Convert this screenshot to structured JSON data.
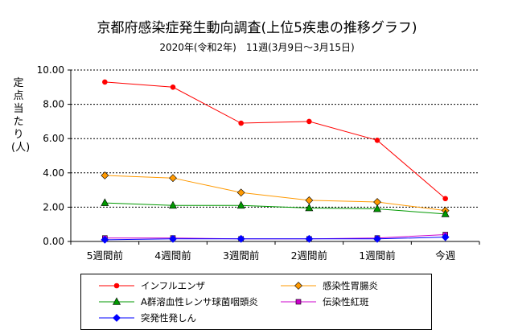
{
  "chart_data": {
    "type": "line",
    "title": "京都府感染症発生動向調査(上位5疾患の推移グラフ)",
    "subtitle": "2020年(令和2年)　11週(3月9日～3月15日)",
    "xlabel": "",
    "ylabel": "定点当たり(人)",
    "categories": [
      "5週間前",
      "4週間前",
      "3週間前",
      "2週間前",
      "1週間前",
      "今週"
    ],
    "ylim": [
      0,
      10
    ],
    "yticks": [
      "0.00",
      "2.00",
      "4.00",
      "6.00",
      "8.00",
      "10.00"
    ],
    "grid": true,
    "legend_position": "bottom",
    "series": [
      {
        "name": "インフルエンザ",
        "color": "#ff0000",
        "marker": "circle",
        "values": [
          9.3,
          9.0,
          6.9,
          7.0,
          5.9,
          2.5
        ]
      },
      {
        "name": "感染性胃腸炎",
        "color": "#ff9900",
        "marker": "diamond",
        "values": [
          3.85,
          3.7,
          2.85,
          2.4,
          2.3,
          1.8
        ]
      },
      {
        "name": "A群溶血性レンサ球菌咽頭炎",
        "color": "#009900",
        "marker": "triangle",
        "values": [
          2.25,
          2.1,
          2.1,
          1.95,
          1.9,
          1.6
        ]
      },
      {
        "name": "伝染性紅斑",
        "color": "#cc00cc",
        "marker": "square",
        "values": [
          0.2,
          0.2,
          0.15,
          0.15,
          0.2,
          0.4
        ]
      },
      {
        "name": "突発性発しん",
        "color": "#0000ff",
        "marker": "diamond",
        "values": [
          0.1,
          0.15,
          0.15,
          0.15,
          0.15,
          0.25
        ]
      }
    ]
  }
}
